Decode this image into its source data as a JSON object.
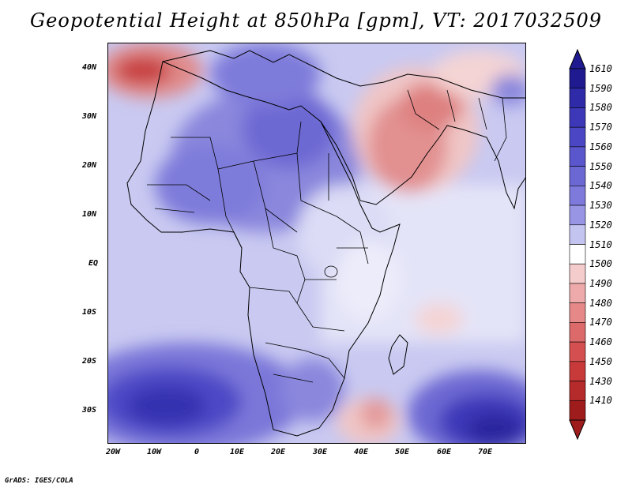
{
  "title": "Geopotential Height at 850hPa [gpm], VT: 2017032509",
  "footer": "GrADS: IGES/COLA",
  "map": {
    "lat_labels": [
      "40N",
      "30N",
      "20N",
      "10N",
      "EQ",
      "10S",
      "20S",
      "30S"
    ],
    "lon_labels": [
      "20W",
      "10W",
      "0",
      "10E",
      "20E",
      "30E",
      "40E",
      "50E",
      "60E",
      "70E"
    ]
  },
  "colorbar": {
    "levels": [
      "1610",
      "1590",
      "1580",
      "1570",
      "1560",
      "1550",
      "1540",
      "1530",
      "1520",
      "1510",
      "1500",
      "1490",
      "1480",
      "1470",
      "1460",
      "1450",
      "1430",
      "1410"
    ],
    "colors": [
      "#1f1a8f",
      "#2e2aa8",
      "#3c38b8",
      "#4b47c4",
      "#5a56cc",
      "#6b68d4",
      "#7d7adc",
      "#9896e4",
      "#c4c4f0",
      "#ffffff",
      "#f4cccc",
      "#eeaaaa",
      "#e68888",
      "#dd6a6a",
      "#d45050",
      "#c83a3a",
      "#b52a2a",
      "#9e1c1c"
    ]
  }
}
